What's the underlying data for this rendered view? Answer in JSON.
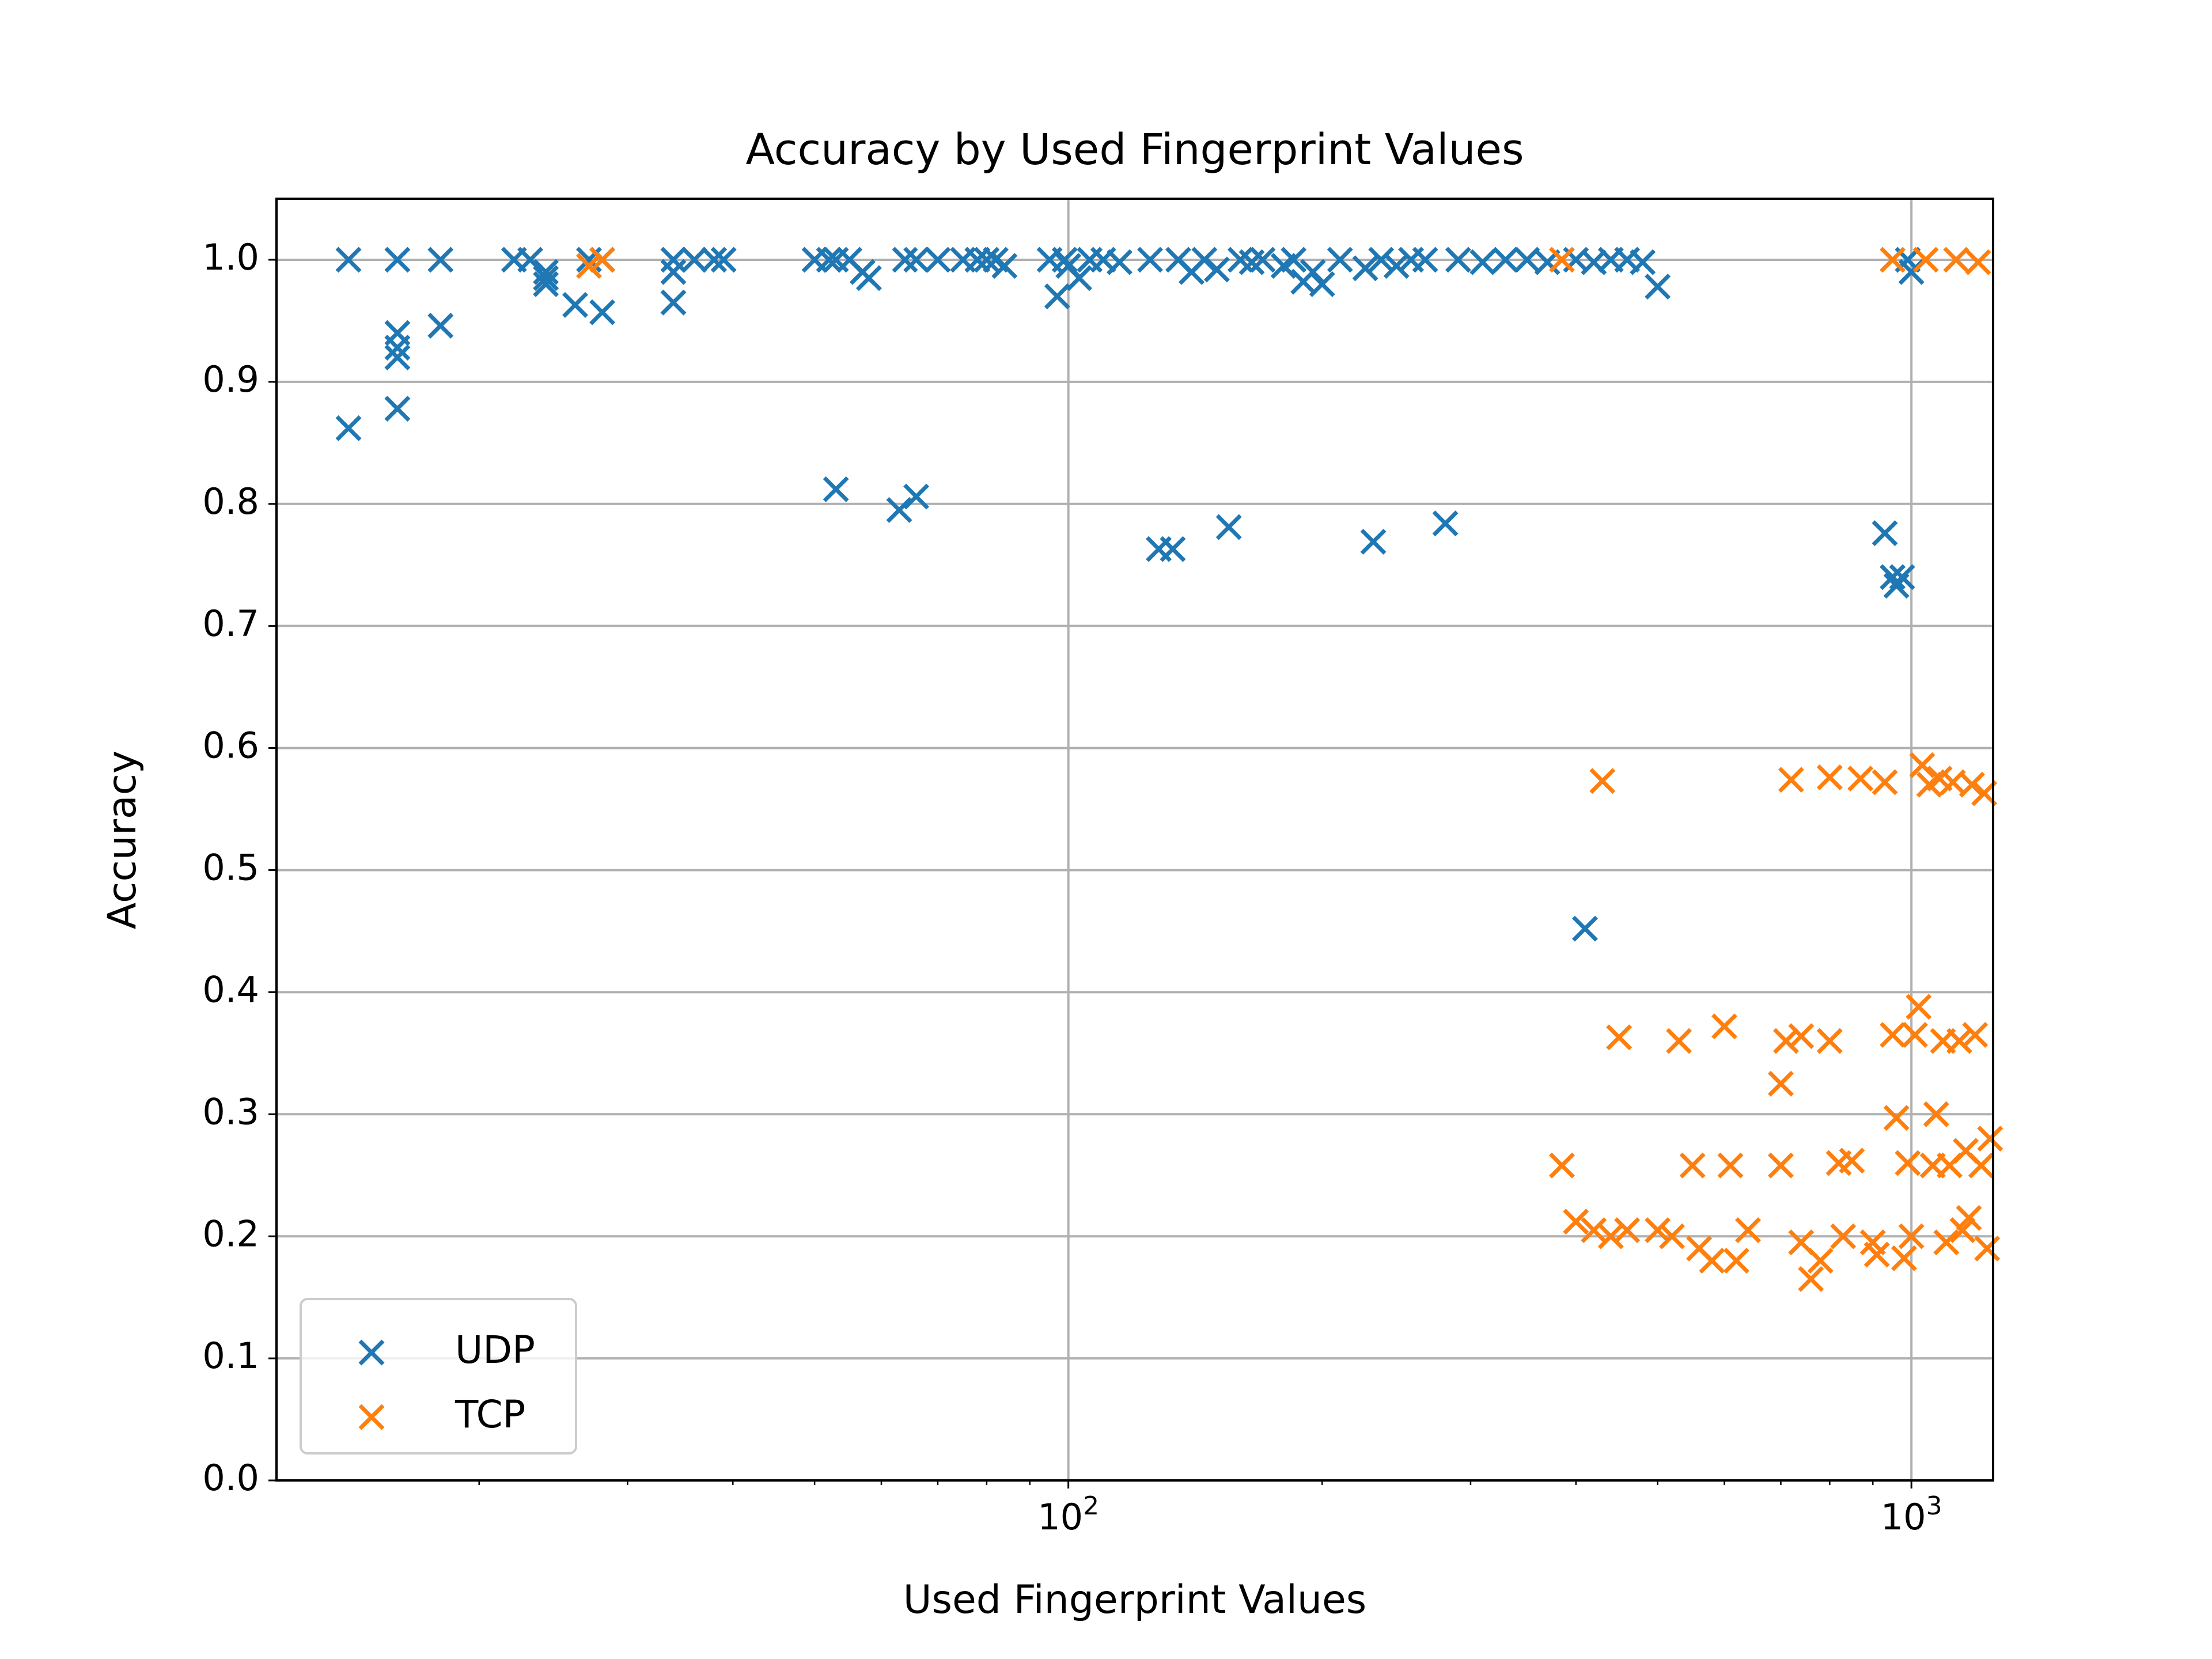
{
  "chart_data": {
    "type": "scatter",
    "title": "Accuracy by Used Fingerprint Values",
    "xlabel": "Used Fingerprint Values",
    "ylabel": "Accuracy",
    "xscale": "log",
    "xlim": [
      11.5,
      1250
    ],
    "ylim": [
      0.0,
      1.05
    ],
    "x_ticks": [
      {
        "value": 100,
        "base": "10",
        "exp": "2"
      },
      {
        "value": 1000,
        "base": "10",
        "exp": "3"
      }
    ],
    "y_ticks": [
      {
        "value": 0.0,
        "label": "0.0"
      },
      {
        "value": 0.1,
        "label": "0.1"
      },
      {
        "value": 0.2,
        "label": "0.2"
      },
      {
        "value": 0.3,
        "label": "0.3"
      },
      {
        "value": 0.4,
        "label": "0.4"
      },
      {
        "value": 0.5,
        "label": "0.5"
      },
      {
        "value": 0.6,
        "label": "0.6"
      },
      {
        "value": 0.7,
        "label": "0.7"
      },
      {
        "value": 0.8,
        "label": "0.8"
      },
      {
        "value": 0.9,
        "label": "0.9"
      },
      {
        "value": 1.0,
        "label": "1.0"
      }
    ],
    "grid": true,
    "legend_position": "lower-left",
    "marker": "x",
    "series": [
      {
        "name": "UDP",
        "color": "#1f77b4",
        "points": [
          [
            14,
            1.0
          ],
          [
            14,
            0.862
          ],
          [
            16,
            1.0
          ],
          [
            16,
            0.94
          ],
          [
            16,
            0.928
          ],
          [
            16,
            0.92
          ],
          [
            16,
            0.878
          ],
          [
            18,
            1.0
          ],
          [
            18,
            0.946
          ],
          [
            22,
            1.0
          ],
          [
            23,
            1.0
          ],
          [
            24,
            0.985
          ],
          [
            24,
            0.99
          ],
          [
            24,
            0.98
          ],
          [
            26,
            0.963
          ],
          [
            27,
            1.0
          ],
          [
            28,
            0.957
          ],
          [
            28,
            1.0
          ],
          [
            34,
            1.0
          ],
          [
            34,
            0.99
          ],
          [
            34,
            0.965
          ],
          [
            36,
            1.0
          ],
          [
            38,
            1.0
          ],
          [
            39,
            1.0
          ],
          [
            50,
            1.0
          ],
          [
            52,
            1.0
          ],
          [
            53,
            1.0
          ],
          [
            53,
            0.812
          ],
          [
            55,
            1.0
          ],
          [
            57,
            0.99
          ],
          [
            58,
            0.985
          ],
          [
            63,
            0.795
          ],
          [
            64,
            1.0
          ],
          [
            66,
            0.806
          ],
          [
            66,
            1.0
          ],
          [
            70,
            1.0
          ],
          [
            75,
            1.0
          ],
          [
            78,
            1.0
          ],
          [
            80,
            1.0
          ],
          [
            82,
            1.0
          ],
          [
            84,
            0.995
          ],
          [
            95,
            1.0
          ],
          [
            97,
            0.97
          ],
          [
            99,
            1.0
          ],
          [
            100,
            0.995
          ],
          [
            103,
            0.985
          ],
          [
            106,
            1.0
          ],
          [
            110,
            1.0
          ],
          [
            115,
            0.998
          ],
          [
            125,
            1.0
          ],
          [
            128,
            0.763
          ],
          [
            133,
            0.763
          ],
          [
            135,
            1.0
          ],
          [
            140,
            0.99
          ],
          [
            145,
            1.0
          ],
          [
            150,
            0.992
          ],
          [
            155,
            0.781
          ],
          [
            160,
            1.0
          ],
          [
            165,
            0.998
          ],
          [
            170,
            1.0
          ],
          [
            180,
            0.995
          ],
          [
            185,
            1.0
          ],
          [
            190,
            0.982
          ],
          [
            195,
            0.99
          ],
          [
            200,
            0.98
          ],
          [
            210,
            1.0
          ],
          [
            225,
            0.993
          ],
          [
            230,
            0.769
          ],
          [
            235,
            1.0
          ],
          [
            245,
            0.995
          ],
          [
            255,
            1.0
          ],
          [
            265,
            1.0
          ],
          [
            280,
            0.784
          ],
          [
            290,
            1.0
          ],
          [
            310,
            0.998
          ],
          [
            330,
            1.0
          ],
          [
            350,
            1.0
          ],
          [
            370,
            0.998
          ],
          [
            400,
            1.0
          ],
          [
            410,
            0.452
          ],
          [
            420,
            0.998
          ],
          [
            440,
            1.0
          ],
          [
            460,
            1.0
          ],
          [
            480,
            0.998
          ],
          [
            500,
            0.978
          ],
          [
            930,
            0.776
          ],
          [
            950,
            0.74
          ],
          [
            960,
            0.733
          ],
          [
            975,
            0.74
          ],
          [
            990,
            1.0
          ],
          [
            1000,
            0.99
          ]
        ]
      },
      {
        "name": "TCP",
        "color": "#ff7f0e",
        "points": [
          [
            27,
            0.995
          ],
          [
            28,
            1.0
          ],
          [
            385,
            1.0
          ],
          [
            385,
            0.258
          ],
          [
            400,
            0.212
          ],
          [
            420,
            0.205
          ],
          [
            430,
            0.573
          ],
          [
            440,
            0.2
          ],
          [
            450,
            0.363
          ],
          [
            460,
            0.205
          ],
          [
            500,
            0.205
          ],
          [
            520,
            0.2
          ],
          [
            530,
            0.36
          ],
          [
            550,
            0.258
          ],
          [
            560,
            0.19
          ],
          [
            580,
            0.18
          ],
          [
            600,
            0.372
          ],
          [
            610,
            0.258
          ],
          [
            620,
            0.18
          ],
          [
            640,
            0.205
          ],
          [
            700,
            0.258
          ],
          [
            700,
            0.325
          ],
          [
            710,
            0.36
          ],
          [
            720,
            0.574
          ],
          [
            740,
            0.195
          ],
          [
            740,
            0.364
          ],
          [
            760,
            0.165
          ],
          [
            780,
            0.18
          ],
          [
            800,
            0.576
          ],
          [
            800,
            0.36
          ],
          [
            820,
            0.26
          ],
          [
            830,
            0.2
          ],
          [
            850,
            0.262
          ],
          [
            870,
            0.575
          ],
          [
            900,
            0.195
          ],
          [
            910,
            0.185
          ],
          [
            930,
            0.572
          ],
          [
            950,
            1.0
          ],
          [
            950,
            0.365
          ],
          [
            960,
            0.297
          ],
          [
            980,
            0.182
          ],
          [
            990,
            0.26
          ],
          [
            1000,
            0.2
          ],
          [
            1010,
            0.365
          ],
          [
            1020,
            0.388
          ],
          [
            1030,
            0.586
          ],
          [
            1040,
            1.0
          ],
          [
            1050,
            0.57
          ],
          [
            1060,
            0.258
          ],
          [
            1070,
            0.3
          ],
          [
            1080,
            0.575
          ],
          [
            1090,
            0.36
          ],
          [
            1100,
            0.195
          ],
          [
            1110,
            0.258
          ],
          [
            1120,
            0.572
          ],
          [
            1130,
            1.0
          ],
          [
            1140,
            0.36
          ],
          [
            1150,
            0.205
          ],
          [
            1160,
            0.27
          ],
          [
            1170,
            0.215
          ],
          [
            1180,
            0.57
          ],
          [
            1190,
            0.365
          ],
          [
            1200,
            0.998
          ],
          [
            1210,
            0.258
          ],
          [
            1220,
            0.563
          ],
          [
            1230,
            0.19
          ],
          [
            1240,
            0.28
          ]
        ]
      }
    ]
  }
}
